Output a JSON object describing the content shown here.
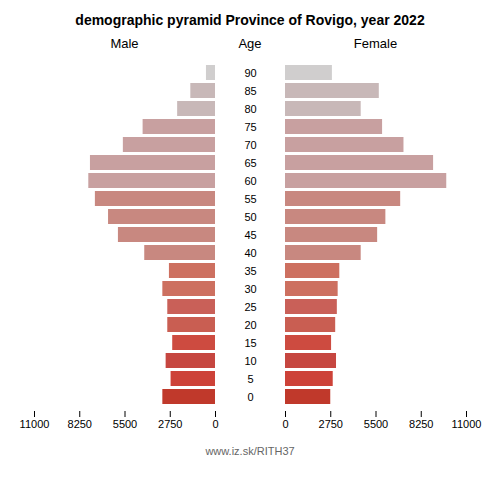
{
  "chart_data": {
    "type": "bar",
    "orientation": "horizontal",
    "title": "demographic pyramid Province of Rovigo, year 2022",
    "ylabel": "Age",
    "categories": [
      "0",
      "5",
      "10",
      "15",
      "20",
      "25",
      "30",
      "35",
      "40",
      "45",
      "50",
      "55",
      "60",
      "65",
      "70",
      "75",
      "80",
      "85",
      "90"
    ],
    "series": [
      {
        "name": "Male",
        "values": [
          3200,
          2700,
          3000,
          2600,
          2900,
          2900,
          3200,
          2800,
          4300,
          5900,
          6500,
          7300,
          7700,
          7600,
          5600,
          4400,
          2300,
          1500,
          550
        ]
      },
      {
        "name": "Female",
        "values": [
          2750,
          2900,
          3100,
          2800,
          3050,
          3150,
          3200,
          3300,
          4600,
          5600,
          6100,
          7000,
          9800,
          9000,
          7200,
          5900,
          4600,
          5700,
          2850
        ]
      }
    ],
    "colors": [
      "#c0392b",
      "#cd4238",
      "#c64640",
      "#cd4b40",
      "#c95e52",
      "#c96058",
      "#cd7060",
      "#cd7060",
      "#c88880",
      "#c88880",
      "#c88880",
      "#c88880",
      "#c8a0a0",
      "#c8a0a0",
      "#c8a0a0",
      "#c8a0a0",
      "#c8b8b8",
      "#c8b8b8",
      "#d0cece"
    ],
    "xlim": [
      0,
      11000
    ],
    "xticks": [
      0,
      2750,
      5500,
      8250,
      11000
    ],
    "annotations": [
      "www.iz.sk/RITH37"
    ]
  }
}
